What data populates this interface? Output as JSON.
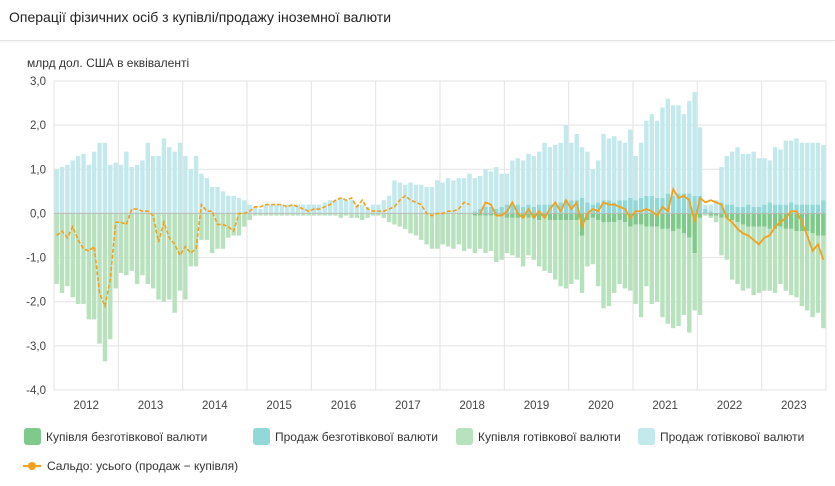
{
  "title": "Операції фізичних осіб з купівлі/продажу іноземної валюти",
  "chart_data": {
    "type": "bar",
    "title": "Операції фізичних осіб з купівлі/продажу іноземної валюти",
    "ylabel": "млрд дол. США в еквіваленті",
    "ylim": [
      -4,
      3
    ],
    "yticks": [
      "3,0",
      "2,0",
      "1,0",
      "0,0",
      "-1,0",
      "-2,0",
      "-3,0",
      "-4,0"
    ],
    "ytick_values": [
      3,
      2,
      1,
      0,
      -1,
      -2,
      -3,
      -4
    ],
    "years": [
      "2012",
      "2013",
      "2014",
      "2015",
      "2016",
      "2017",
      "2018",
      "2019",
      "2020",
      "2021",
      "2022",
      "2023"
    ],
    "frequency": "monthly",
    "colors": {
      "cashless_buy": "#80c98c",
      "cashless_sell": "#93d8d8",
      "cash_buy": "#b8e1bd",
      "cash_sell": "#c4e9ed",
      "balance": "#f0a11e"
    },
    "legend": {
      "cashless_buy": "Купівля безготівкової валюти",
      "cashless_sell": "Продаж безготівкової валюти",
      "cash_buy": "Купівля готівкової валюти",
      "cash_sell": "Продаж готівкової валюти",
      "balance": "Сальдо: усього (продаж − купівля)"
    },
    "series": {
      "cash_sell": [
        1.0,
        1.05,
        1.1,
        1.2,
        1.3,
        1.35,
        1.1,
        1.4,
        1.6,
        1.6,
        1.1,
        1.15,
        1.1,
        1.4,
        1.05,
        1.1,
        1.2,
        1.6,
        1.3,
        1.3,
        1.7,
        1.5,
        1.4,
        1.6,
        1.3,
        1.0,
        1.3,
        0.9,
        0.8,
        0.6,
        0.6,
        0.5,
        0.4,
        0.4,
        0.35,
        0.3,
        0.2,
        0.15,
        0.1,
        0.2,
        0.2,
        0.2,
        0.2,
        0.2,
        0.2,
        0.2,
        0.2,
        0.2,
        0.2,
        0.2,
        0.25,
        0.3,
        0.3,
        0.35,
        0.3,
        0.3,
        0.2,
        0.2,
        0.15,
        0.2,
        0.2,
        0.3,
        0.4,
        0.75,
        0.7,
        0.65,
        0.7,
        0.65,
        0.65,
        0.6,
        0.6,
        0.75,
        0.7,
        0.8,
        0.75,
        0.8,
        0.8,
        0.9,
        0.75,
        0.75,
        0.85,
        0.8,
        0.95,
        0.75,
        0.7,
        1.0,
        1.05,
        1.05,
        1.15,
        1.15,
        1.2,
        1.4,
        1.3,
        1.35,
        1.35,
        1.7,
        1.3,
        1.5,
        1.15,
        1.15,
        0.8,
        0.95,
        1.5,
        1.4,
        1.5,
        1.35,
        1.3,
        1.55,
        1.0,
        1.25,
        1.7,
        1.85,
        1.75,
        2.05,
        2.15,
        2.05,
        2.0,
        1.8,
        2.1,
        2.35,
        1.55,
        0.1,
        0.15,
        0.3,
        0.8,
        1.1,
        1.2,
        1.35,
        1.2,
        1.15,
        1.25,
        1.1,
        1.05,
        0.95,
        1.3,
        1.25,
        1.45,
        1.4,
        1.5,
        1.4,
        1.4,
        1.4,
        1.4,
        1.25
      ],
      "cashless_sell": [
        0,
        0,
        0,
        0,
        0,
        0,
        0,
        0,
        0,
        0,
        0,
        0,
        0,
        0,
        0,
        0,
        0,
        0,
        0,
        0,
        0,
        0,
        0,
        0,
        0,
        0,
        0,
        0,
        0,
        0,
        0,
        0,
        0,
        0,
        0,
        0,
        0,
        0,
        0,
        0,
        0,
        0,
        0,
        0,
        0,
        0,
        0,
        0,
        0,
        0,
        0,
        0,
        0,
        0,
        0,
        0,
        0,
        0,
        0,
        0,
        0,
        0,
        0,
        0,
        0,
        0,
        0,
        0,
        0,
        0,
        0,
        0,
        0,
        0,
        0,
        0,
        0,
        0,
        0.05,
        0.1,
        0.15,
        0.15,
        0.1,
        0.15,
        0.2,
        0.2,
        0.2,
        0.15,
        0.2,
        0.15,
        0.2,
        0.2,
        0.2,
        0.2,
        0.25,
        0.3,
        0.3,
        0.3,
        0.35,
        0.25,
        0.2,
        0.25,
        0.3,
        0.3,
        0.25,
        0.3,
        0.3,
        0.35,
        0.3,
        0.35,
        0.4,
        0.4,
        0.35,
        0.35,
        0.45,
        0.4,
        0.45,
        0.45,
        0.45,
        0.4,
        0.4,
        0.1,
        0.05,
        0,
        0.25,
        0.2,
        0.2,
        0.15,
        0.15,
        0.2,
        0.15,
        0.15,
        0.2,
        0.25,
        0.2,
        0.2,
        0.2,
        0.25,
        0.2,
        0.2,
        0.2,
        0.2,
        0.2,
        0.3
      ],
      "cashless_buy": [
        0,
        0,
        0,
        0,
        0,
        0,
        0,
        0,
        0,
        0,
        0,
        0,
        0,
        0,
        0,
        0,
        0,
        0,
        0,
        0,
        0,
        0,
        0,
        0,
        0,
        0,
        0,
        0,
        0,
        0,
        0,
        0,
        0,
        0,
        0,
        0,
        0,
        0,
        0,
        0,
        0,
        0,
        0,
        0,
        0,
        0,
        0,
        0,
        0,
        0,
        0,
        0,
        0,
        0,
        0,
        0,
        0,
        0,
        0,
        0,
        0,
        0,
        0,
        0,
        0,
        0,
        0,
        0,
        0,
        0,
        0,
        0,
        0,
        0,
        0,
        0,
        0,
        0,
        -0.05,
        -0.05,
        -0.05,
        -0.05,
        -0.05,
        -0.05,
        -0.1,
        -0.1,
        -0.1,
        -0.1,
        -0.1,
        -0.1,
        -0.15,
        -0.1,
        -0.15,
        -0.15,
        -0.15,
        -0.15,
        -0.15,
        -0.15,
        -0.5,
        -0.15,
        -0.1,
        -0.15,
        -0.2,
        -0.2,
        -0.2,
        -0.15,
        -0.2,
        -0.3,
        -0.25,
        -0.25,
        -0.3,
        -0.3,
        -0.3,
        -0.35,
        -0.35,
        -0.4,
        -0.35,
        -0.45,
        -0.55,
        -0.9,
        -0.1,
        0,
        -0.05,
        -0.05,
        -0.1,
        -0.1,
        -0.15,
        -0.2,
        -0.25,
        -0.3,
        -0.3,
        -0.3,
        -0.3,
        -0.35,
        -0.35,
        -0.3,
        -0.35,
        -0.35,
        -0.4,
        -0.4,
        -0.4,
        -0.45,
        -0.5,
        -0.5
      ],
      "cash_buy": [
        -1.6,
        -1.8,
        -1.65,
        -1.9,
        -2.05,
        -2.05,
        -2.4,
        -2.4,
        -2.95,
        -3.35,
        -2.85,
        -1.7,
        -1.35,
        -1.4,
        -1.3,
        -1.6,
        -1.4,
        -1.6,
        -1.7,
        -1.95,
        -2.0,
        -1.95,
        -2.25,
        -1.75,
        -1.95,
        -1.2,
        -1.2,
        -0.6,
        -0.6,
        -0.9,
        -0.8,
        -0.8,
        -0.55,
        -0.5,
        -0.5,
        -0.3,
        -0.15,
        -0.05,
        -0.05,
        -0.05,
        -0.05,
        -0.05,
        -0.05,
        -0.05,
        -0.05,
        -0.05,
        -0.05,
        -0.05,
        -0.05,
        -0.05,
        -0.05,
        -0.05,
        -0.05,
        -0.1,
        -0.05,
        -0.1,
        -0.1,
        -0.15,
        -0.1,
        -0.05,
        -0.05,
        -0.1,
        -0.2,
        -0.25,
        -0.3,
        -0.35,
        -0.45,
        -0.5,
        -0.6,
        -0.7,
        -0.8,
        -0.8,
        -0.7,
        -0.75,
        -0.8,
        -0.7,
        -0.85,
        -0.8,
        -0.85,
        -0.75,
        -0.85,
        -0.8,
        -1.05,
        -1.0,
        -0.8,
        -0.85,
        -0.9,
        -1.1,
        -0.85,
        -0.95,
        -1.05,
        -1.2,
        -1.2,
        -1.35,
        -1.5,
        -1.55,
        -1.45,
        -1.35,
        -1.3,
        -1.05,
        -1.05,
        -1.5,
        -1.95,
        -1.9,
        -1.6,
        -1.45,
        -1.5,
        -1.45,
        -1.8,
        -2.1,
        -1.35,
        -1.75,
        -1.7,
        -2.0,
        -2.15,
        -2.2,
        -2.2,
        -1.85,
        -2.15,
        -1.3,
        -2.2,
        -0.05,
        -0.05,
        -0.15,
        -0.85,
        -0.95,
        -1.35,
        -1.4,
        -1.5,
        -1.4,
        -1.55,
        -1.5,
        -1.45,
        -1.4,
        -1.45,
        -1.3,
        -1.4,
        -1.5,
        -1.5,
        -1.7,
        -1.8,
        -1.9,
        -1.75,
        -2.1
      ],
      "balance": [
        -0.5,
        -0.4,
        -0.55,
        -0.3,
        -0.6,
        -0.8,
        -0.85,
        -0.75,
        -1.8,
        -2.1,
        -1.5,
        -0.2,
        -0.2,
        -0.25,
        0.1,
        0.1,
        0.05,
        0.05,
        -0.05,
        -0.65,
        -0.2,
        -0.55,
        -0.7,
        -0.95,
        -0.75,
        -0.9,
        -0.8,
        0.2,
        0.05,
        0.05,
        -0.25,
        -0.25,
        -0.3,
        -0.4,
        0.0,
        0.0,
        0.05,
        0.15,
        0.15,
        0.2,
        0.2,
        0.2,
        0.2,
        0.15,
        0.2,
        0.15,
        0.1,
        0.05,
        0.1,
        0.1,
        0.15,
        0.2,
        0.3,
        0.35,
        0.3,
        0.35,
        0.15,
        0.3,
        0.1,
        0.05,
        0.05,
        0.05,
        0.1,
        0.15,
        0.3,
        0.4,
        0.3,
        0.25,
        0.2,
        0.0,
        -0.05,
        0.0,
        0.0,
        0.05,
        0.05,
        0.1,
        0.25,
        0.2,
        null,
        0.0,
        0.25,
        0.2,
        -0.05,
        -0.05,
        0.05,
        0.25,
        0.0,
        -0.1,
        0.1,
        -0.1,
        0.05,
        -0.1,
        0.1,
        0.25,
        0.05,
        0.3,
        0.1,
        0.25,
        -0.3,
        0.0,
        0.1,
        0.05,
        0.25,
        0.2,
        0.2,
        0.15,
        0.1,
        -0.1,
        0.05,
        0.05,
        0.1,
        0.05,
        -0.05,
        0.15,
        0.05,
        0.55,
        0.35,
        0.4,
        0.3,
        -0.2,
        0.35,
        0.25,
        0.3,
        0.25,
        0.2,
        -0.1,
        -0.2,
        -0.35,
        -0.45,
        -0.5,
        -0.6,
        -0.7,
        -0.55,
        -0.5,
        -0.3,
        -0.2,
        -0.1,
        0.05,
        0.05,
        -0.2,
        -0.5,
        -0.85,
        -0.7,
        -1.05
      ],
      "balance_dashed_until_index": 77
    }
  }
}
